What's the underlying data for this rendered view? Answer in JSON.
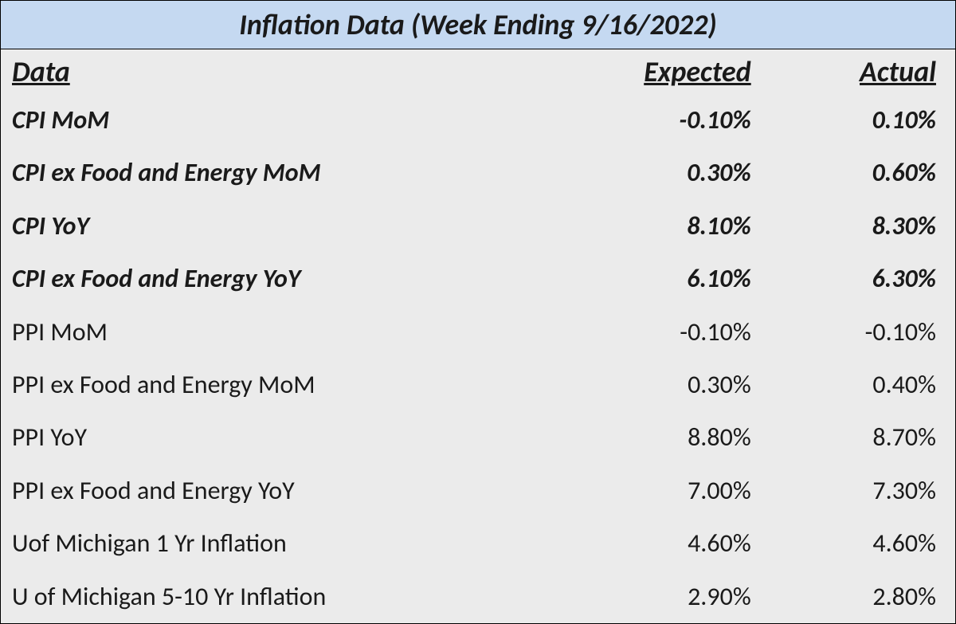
{
  "table": {
    "title": "Inflation Data (Week Ending 9/16/2022)",
    "title_bg_color": "#c5d9f1",
    "body_bg_color": "#ebebeb",
    "border_color": "#000000",
    "text_color": "#1a1a1a",
    "title_fontsize": 36,
    "header_fontsize": 36,
    "row_fontsize": 32,
    "columns": {
      "data": "Data",
      "expected": "Expected",
      "actual": "Actual"
    },
    "rows": [
      {
        "label": "CPI MoM",
        "expected": "-0.10%",
        "actual": "0.10%",
        "emphasized": true
      },
      {
        "label": "CPI ex Food and Energy MoM",
        "expected": "0.30%",
        "actual": "0.60%",
        "emphasized": true
      },
      {
        "label": "CPI YoY",
        "expected": "8.10%",
        "actual": "8.30%",
        "emphasized": true
      },
      {
        "label": "CPI ex Food and Energy YoY",
        "expected": "6.10%",
        "actual": "6.30%",
        "emphasized": true
      },
      {
        "label": "PPI MoM",
        "expected": "-0.10%",
        "actual": "-0.10%",
        "emphasized": false
      },
      {
        "label": "PPI ex Food and Energy MoM",
        "expected": "0.30%",
        "actual": "0.40%",
        "emphasized": false
      },
      {
        "label": "PPI YoY",
        "expected": "8.80%",
        "actual": "8.70%",
        "emphasized": false
      },
      {
        "label": "PPI ex Food and Energy YoY",
        "expected": "7.00%",
        "actual": "7.30%",
        "emphasized": false
      },
      {
        "label": "Uof Michigan 1 Yr Inflation",
        "expected": "4.60%",
        "actual": "4.60%",
        "emphasized": false
      },
      {
        "label": "U of Michigan 5-10 Yr Inflation",
        "expected": "2.90%",
        "actual": "2.80%",
        "emphasized": false
      }
    ]
  }
}
